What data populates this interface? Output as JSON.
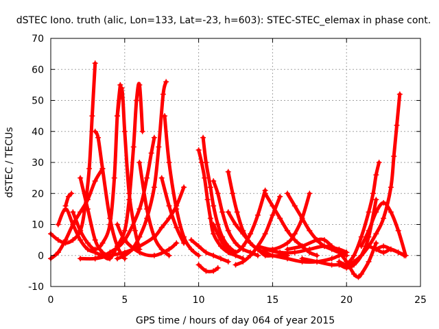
{
  "chart_data": {
    "type": "scatter",
    "title": "dSTEC Iono. truth (alic, Lon=133, Lat=-23, h=603): STEC-STEC_elemax in phase cont.",
    "xlabel": "GPS time / hours of day 064 of year 2015",
    "ylabel": "dSTEC  / TECUs",
    "xlim": [
      0,
      25
    ],
    "ylim": [
      -10,
      70
    ],
    "xticks": [
      0,
      5,
      10,
      15,
      20,
      25
    ],
    "yticks": [
      -10,
      0,
      10,
      20,
      30,
      40,
      50,
      60,
      70
    ],
    "grid": true,
    "marker": "plus",
    "color": "#ff0000",
    "series": [
      {
        "x": [
          0.0,
          0.5,
          1.0,
          1.5,
          2.0,
          2.3,
          2.6,
          2.8,
          3.0
        ],
        "values": [
          7,
          5,
          4,
          5,
          8,
          15,
          28,
          45,
          62
        ]
      },
      {
        "x": [
          2.0,
          2.5,
          3.0,
          3.5,
          4.0
        ],
        "values": [
          25,
          15,
          5,
          1,
          0
        ]
      },
      {
        "x": [
          3.0,
          3.2,
          3.5,
          4.0,
          4.5,
          5.0
        ],
        "values": [
          40,
          38,
          28,
          12,
          3,
          -1
        ]
      },
      {
        "x": [
          0.0,
          0.5,
          1.0,
          1.5,
          2.0,
          2.5,
          3.0,
          3.5
        ],
        "values": [
          -1,
          1,
          5,
          10,
          14,
          18,
          24,
          28
        ]
      },
      {
        "x": [
          0.5,
          1.0,
          1.5,
          2.0,
          2.5,
          3.0,
          3.5,
          4.0
        ],
        "values": [
          10,
          15,
          10,
          5,
          2,
          1,
          0,
          0
        ]
      },
      {
        "x": [
          1.0,
          1.2,
          1.4
        ],
        "values": [
          16,
          19,
          20
        ]
      },
      {
        "x": [
          1.5,
          2.0,
          2.5,
          3.0,
          3.5,
          4.0,
          4.3,
          4.5,
          4.7
        ],
        "values": [
          14,
          8,
          4,
          2,
          4,
          10,
          25,
          45,
          55
        ]
      },
      {
        "x": [
          4.5,
          4.8,
          5.0,
          5.3,
          5.7,
          6.0
        ],
        "values": [
          45,
          54,
          40,
          20,
          8,
          2
        ]
      },
      {
        "x": [
          3.5,
          4.0,
          4.5,
          5.0,
          5.3,
          5.6,
          5.8,
          6.0,
          6.2
        ],
        "values": [
          0,
          -1,
          3,
          8,
          18,
          35,
          50,
          55,
          40
        ]
      },
      {
        "x": [
          6.0,
          6.5,
          7.0,
          7.5,
          8.0
        ],
        "values": [
          30,
          15,
          6,
          2,
          0
        ]
      },
      {
        "x": [
          4.5,
          5.0,
          5.5,
          6.0,
          6.5,
          7.0,
          7.3,
          7.6,
          7.8
        ],
        "values": [
          -1,
          0,
          2,
          6,
          12,
          22,
          35,
          52,
          56
        ]
      },
      {
        "x": [
          7.5,
          8.0,
          8.5,
          9.0
        ],
        "values": [
          25,
          16,
          9,
          4
        ]
      },
      {
        "x": [
          7.7,
          8.0,
          8.5,
          9.0,
          9.5,
          10.0
        ],
        "values": [
          45,
          30,
          15,
          6,
          2,
          0
        ]
      },
      {
        "x": [
          3.0,
          4.0,
          5.0,
          6.0,
          6.5,
          6.8,
          7.0
        ],
        "values": [
          -1,
          1,
          5,
          15,
          25,
          33,
          38
        ]
      },
      {
        "x": [
          2.0,
          3.0,
          4.0,
          5.0,
          6.0,
          7.0,
          7.5,
          8.0,
          8.5,
          9.0
        ],
        "values": [
          -1,
          -1,
          0,
          1,
          3,
          6,
          9,
          12,
          16,
          22
        ]
      },
      {
        "x": [
          4.5,
          5.0,
          6.0,
          7.0,
          8.0,
          8.5
        ],
        "values": [
          10,
          5,
          1,
          0,
          2,
          4
        ]
      },
      {
        "x": [
          10.0,
          10.2,
          10.4,
          10.6,
          10.8,
          11.0,
          11.5,
          12.0,
          12.5,
          13.0
        ],
        "values": [
          34,
          30,
          25,
          18,
          12,
          7,
          3,
          1,
          0,
          -1
        ]
      },
      {
        "x": [
          10.3,
          10.5,
          10.8,
          11.0,
          11.3,
          11.6,
          12.0,
          12.5
        ],
        "values": [
          38,
          30,
          22,
          16,
          10,
          6,
          3,
          1
        ]
      },
      {
        "x": [
          10.0,
          10.5,
          11.0,
          11.3
        ],
        "values": [
          -3,
          -5,
          -5,
          -4
        ]
      },
      {
        "x": [
          9.5,
          10.0,
          10.5,
          11.0,
          11.5,
          12.0
        ],
        "values": [
          5,
          3,
          1,
          0,
          -1,
          -2
        ]
      },
      {
        "x": [
          11.0,
          11.3,
          11.6,
          12.0,
          12.5,
          13.0,
          13.5,
          14.0
        ],
        "values": [
          24,
          20,
          14,
          8,
          4,
          2,
          1,
          0
        ]
      },
      {
        "x": [
          12.0,
          12.3,
          12.6,
          13.0,
          13.5,
          14.0,
          14.5,
          15.0
        ],
        "values": [
          27,
          20,
          14,
          8,
          4,
          2,
          0,
          0
        ]
      },
      {
        "x": [
          11.0,
          11.5,
          12.0,
          12.5,
          13.0,
          13.5,
          14.0,
          14.5
        ],
        "values": [
          10,
          5,
          2,
          1,
          3,
          7,
          13,
          21
        ]
      },
      {
        "x": [
          12.5,
          13.0,
          13.5,
          14.0,
          14.5,
          15.0,
          15.5
        ],
        "values": [
          -3,
          -2,
          0,
          3,
          7,
          13,
          19
        ]
      },
      {
        "x": [
          12.0,
          12.5,
          13.0,
          13.5,
          14.0,
          14.5,
          15.0,
          15.5,
          16.0
        ],
        "values": [
          14,
          10,
          7,
          4,
          2,
          1,
          0,
          0,
          0
        ]
      },
      {
        "x": [
          14.5,
          15.0,
          15.5,
          16.0,
          16.5,
          17.0,
          17.5,
          18.0
        ],
        "values": [
          20,
          16,
          12,
          8,
          5,
          3,
          1,
          0
        ]
      },
      {
        "x": [
          16.0,
          16.5,
          17.0,
          17.5,
          18.0,
          18.5,
          19.0,
          19.5,
          20.0
        ],
        "values": [
          20,
          16,
          12,
          8,
          5,
          3,
          2,
          1,
          1
        ]
      },
      {
        "x": [
          14.0,
          15.0,
          16.0,
          16.5,
          17.0,
          17.5
        ],
        "values": [
          3,
          2,
          4,
          7,
          12,
          20
        ]
      },
      {
        "x": [
          14.5,
          15.5,
          16.5,
          17.5,
          18.5,
          19.5,
          20.0
        ],
        "values": [
          2,
          1,
          1,
          2,
          3,
          2,
          1
        ]
      },
      {
        "x": [
          16.0,
          17.0,
          18.0,
          18.5,
          19.0,
          19.5,
          20.0
        ],
        "values": [
          2,
          3,
          5,
          5,
          3,
          1,
          0
        ]
      },
      {
        "x": [
          15.0,
          16.0,
          17.0,
          18.0,
          19.0,
          19.5,
          20.0
        ],
        "values": [
          0,
          -1,
          -2,
          -2,
          -1,
          0,
          1
        ]
      },
      {
        "x": [
          17.0,
          18.0,
          19.0,
          19.5,
          20.0,
          20.5,
          21.0,
          21.5,
          22.0
        ],
        "values": [
          -1,
          -2,
          -3,
          -3,
          -4,
          -3,
          0,
          6,
          18
        ]
      },
      {
        "x": [
          19.0,
          19.5,
          20.0,
          20.5,
          20.8,
          21.0,
          21.5,
          22.0
        ],
        "values": [
          3,
          1,
          -2,
          -6,
          -7,
          -6,
          -2,
          4
        ]
      },
      {
        "x": [
          20.0,
          20.5,
          21.0,
          21.5,
          21.8,
          22.0,
          22.2
        ],
        "values": [
          -3,
          0,
          6,
          14,
          20,
          26,
          30
        ]
      },
      {
        "x": [
          19.5,
          20.0,
          20.5,
          21.0,
          21.5,
          22.0,
          22.5,
          23.0,
          23.2,
          23.4,
          23.6
        ],
        "values": [
          -2,
          -3,
          -2,
          0,
          3,
          7,
          12,
          22,
          32,
          42,
          52
        ]
      },
      {
        "x": [
          21.0,
          21.5,
          22.0,
          22.5,
          23.0,
          23.5,
          24.0
        ],
        "values": [
          3,
          8,
          14,
          17,
          14,
          8,
          0
        ]
      },
      {
        "x": [
          21.5,
          22.0,
          22.5,
          23.0,
          23.5,
          24.0
        ],
        "values": [
          3,
          2,
          1,
          2,
          1,
          0
        ]
      },
      {
        "x": [
          22.0,
          22.5,
          23.0,
          23.5,
          23.9
        ],
        "values": [
          2,
          3,
          2,
          1,
          0
        ]
      }
    ]
  }
}
